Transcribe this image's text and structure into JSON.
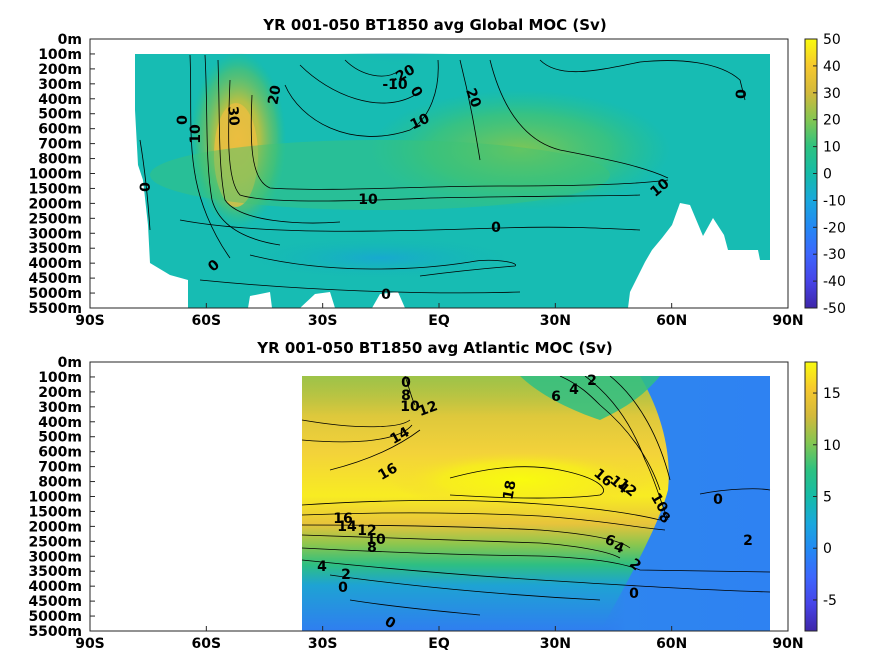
{
  "chart_data": [
    {
      "type": "heatmap",
      "title": "YR 001-050 BT1850 avg  Global MOC (Sv)",
      "x_ticks": [
        "90S",
        "60S",
        "30S",
        "EQ",
        "30N",
        "60N",
        "90N"
      ],
      "y_ticks": [
        "0m",
        "100m",
        "200m",
        "300m",
        "400m",
        "500m",
        "600m",
        "700m",
        "800m",
        "1000m",
        "1500m",
        "2000m",
        "2500m",
        "3000m",
        "3500m",
        "4000m",
        "4500m",
        "5000m",
        "5500m"
      ],
      "colorbar": {
        "min": -50,
        "max": 50,
        "ticks": [
          "50",
          "40",
          "30",
          "20",
          "10",
          "0",
          "-10",
          "-20",
          "-30",
          "-40",
          "-50"
        ]
      },
      "contour_labels": [
        "-20",
        "-10",
        "0",
        "20",
        "20",
        "30",
        "10",
        "0",
        "10",
        "0",
        "10",
        "10",
        "0",
        "0",
        "0",
        "0"
      ],
      "cells": [
        [
          "90S",
          "0m",
          0
        ],
        [
          "60S",
          "1000m",
          30
        ],
        [
          "45S",
          "700m",
          20
        ],
        [
          "15S",
          "100m",
          -20
        ],
        [
          "0",
          "100m",
          -10
        ],
        [
          "15N",
          "300m",
          20
        ],
        [
          "30N",
          "700m",
          10
        ],
        [
          "60N",
          "1000m",
          10
        ],
        [
          "30S",
          "2000m",
          10
        ],
        [
          "15S",
          "3500m",
          -5
        ],
        [
          "15S",
          "5500m",
          0
        ]
      ]
    },
    {
      "type": "heatmap",
      "title": "YR 001-050 BT1850 avg  Atlantic MOC (Sv)",
      "x_ticks": [
        "90S",
        "60S",
        "30S",
        "EQ",
        "30N",
        "60N",
        "90N"
      ],
      "y_ticks": [
        "0m",
        "100m",
        "200m",
        "300m",
        "400m",
        "500m",
        "600m",
        "700m",
        "800m",
        "1000m",
        "1500m",
        "2000m",
        "2500m",
        "3000m",
        "3500m",
        "4000m",
        "4500m",
        "5000m",
        "5500m"
      ],
      "colorbar": {
        "min": -8,
        "max": 18,
        "ticks": [
          "15",
          "10",
          "5",
          "0",
          "-5"
        ]
      },
      "contour_labels": [
        "0",
        "8",
        "10",
        "12",
        "14",
        "16",
        "18",
        "2",
        "4",
        "6",
        "16",
        "14",
        "12",
        "10",
        "8",
        "0",
        "16",
        "14",
        "12",
        "10",
        "8",
        "6",
        "4",
        "2",
        "4",
        "2",
        "0",
        "0",
        "0",
        "2"
      ],
      "cells": [
        [
          "EQ",
          "1000m",
          18
        ],
        [
          "30N",
          "800m",
          18
        ],
        [
          "15S",
          "500m",
          14
        ],
        [
          "45N",
          "1000m",
          14
        ],
        [
          "30S",
          "2000m",
          16
        ],
        [
          "60N",
          "1000m",
          8
        ],
        [
          "75N",
          "1000m",
          0
        ],
        [
          "30S",
          "3500m",
          4
        ],
        [
          "EQ",
          "5000m",
          0
        ]
      ]
    }
  ]
}
